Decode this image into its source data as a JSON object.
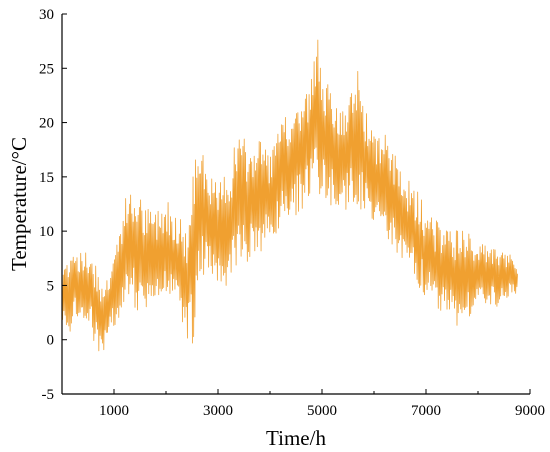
{
  "chart_data": {
    "type": "line",
    "xlabel": "Time/h",
    "ylabel": "Temperature/°C",
    "xlim": [
      0,
      9000
    ],
    "ylim": [
      -5,
      30
    ],
    "x_ticks": [
      1000,
      3000,
      5000,
      7000,
      9000
    ],
    "y_ticks": [
      -5,
      0,
      5,
      10,
      15,
      20,
      25,
      30
    ],
    "grid": false,
    "series": [
      {
        "color": "#f0a030",
        "x_start": 0,
        "x_end": 8760,
        "x_step": 12,
        "envelope": {
          "x": [
            0,
            200,
            400,
            600,
            800,
            1000,
            1200,
            1400,
            1600,
            1800,
            2000,
            2200,
            2400,
            2500,
            2600,
            2700,
            2800,
            3000,
            3200,
            3400,
            3600,
            3800,
            4000,
            4200,
            4400,
            4600,
            4800,
            4900,
            5000,
            5200,
            5400,
            5600,
            5700,
            5800,
            6000,
            6200,
            6400,
            6600,
            6800,
            7000,
            7200,
            7400,
            7600,
            7800,
            8000,
            8200,
            8400,
            8600,
            8760
          ],
          "low": [
            0,
            1,
            2,
            0,
            -2,
            1,
            3,
            3,
            2,
            3,
            4,
            3,
            0,
            -1,
            3,
            6,
            6,
            5,
            5,
            7,
            7,
            8,
            9,
            10,
            11,
            12,
            13,
            14,
            13,
            12,
            12,
            12,
            12,
            12,
            11,
            10,
            8,
            7,
            5,
            4,
            3,
            2,
            1,
            2,
            3,
            3,
            3,
            4,
            4
          ],
          "high": [
            7,
            9,
            8,
            8,
            5,
            8,
            13,
            14,
            12,
            12,
            13,
            12,
            10,
            14,
            19,
            19,
            16,
            14,
            16,
            19,
            18,
            19,
            17,
            20,
            21,
            22,
            24,
            28,
            26,
            22,
            21,
            23,
            26,
            22,
            19,
            19,
            17,
            15,
            14,
            12,
            11,
            11,
            10,
            10,
            9,
            9,
            8,
            8,
            7
          ]
        }
      }
    ]
  }
}
